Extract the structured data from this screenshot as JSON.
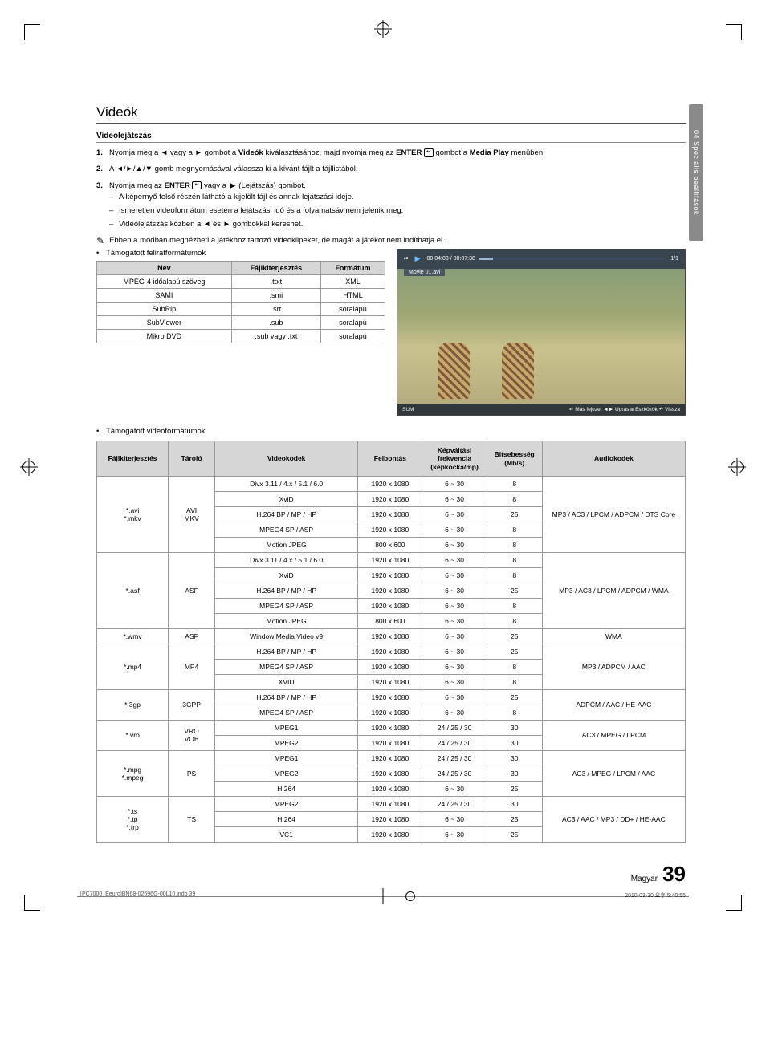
{
  "sideTab": {
    "text": "04  Speciális beállítások"
  },
  "heading": "Videók",
  "subheading": "Videolejátszás",
  "steps": [
    {
      "num": "1.",
      "html": "Nyomja meg a ◄ vagy a ► gombot a <b>Videók</b> kiválasztásához, majd nyomja meg az <b>ENTER</b> <span class='enter-badge'>↵</span> gombot a <b>Media Play</b> menüben."
    },
    {
      "num": "2.",
      "html": "A ◄/►/▲/▼ gomb megnyomásával válassza ki a kívánt fájlt a fájllistából."
    },
    {
      "num": "3.",
      "html": "Nyomja meg az <b>ENTER</b> <span class='enter-badge'>↵</span> vagy a <span class='glyph'>▶</span> (Lejátszás) gombot."
    }
  ],
  "dashes": [
    "A képernyő felső részén látható a kijelölt fájl és annak lejátszási ideje.",
    "Ismeretlen videoformátum esetén a lejátszási idő és a folyamatsáv nem jelenik meg.",
    "Videolejátszás közben a ◄ és ► gombokkal kereshet."
  ],
  "note": "Ebben a módban megnézheti a játékhoz tartozó videoklipeket, de magát a játékot nem indíthatja el.",
  "bullet1": "Támogatott feliratformátumok",
  "bullet2": "Támogatott videoformátumok",
  "subtitleTable": {
    "headers": [
      "Név",
      "Fájlkiterjesztés",
      "Formátum"
    ],
    "rows": [
      [
        "MPEG-4 időalapú szöveg",
        ".ttxt",
        "XML"
      ],
      [
        "SAMI",
        ".smi",
        "HTML"
      ],
      [
        "SubRip",
        ".srt",
        "soralapú"
      ],
      [
        "SubViewer",
        ".sub",
        "soralapú"
      ],
      [
        "Mikro DVD",
        ".sub vagy .txt",
        "soralapú"
      ]
    ]
  },
  "preview": {
    "time": "00:04:03 / 00:07:38",
    "page": "1/1",
    "file": "Movie 01.avi",
    "sum": "SUM",
    "controls": "↵ Más fejezet  ◄► Ugrás  ⧈ Eszközök  ↶ Vissza"
  },
  "videoTable": {
    "headers": [
      "Fájlkiterjesztés",
      "Tároló",
      "Videokodek",
      "Felbontás",
      "Képváltási frekvencia (képkocka/mp)",
      "Bitsebesség (Mb/s)",
      "Audiokodek"
    ],
    "colWidths": [
      "80",
      "52",
      "160",
      "72",
      "72",
      "62",
      "160"
    ],
    "groups": [
      {
        "ext": "*.avi\n*.mkv",
        "cont": "AVI\nMKV",
        "rows": [
          [
            "Divx 3.11 / 4.x / 5.1 / 6.0",
            "1920 x 1080",
            "6 ~ 30",
            "8"
          ],
          [
            "XviD",
            "1920 x 1080",
            "6 ~ 30",
            "8"
          ],
          [
            "H.264 BP / MP / HP",
            "1920 x 1080",
            "6 ~ 30",
            "25"
          ],
          [
            "MPEG4 SP / ASP",
            "1920 x 1080",
            "6 ~ 30",
            "8"
          ],
          [
            "Motion JPEG",
            "800 x 600",
            "6 ~ 30",
            "8"
          ]
        ],
        "audio": "MP3 / AC3 / LPCM / ADPCM / DTS Core"
      },
      {
        "ext": "*.asf",
        "cont": "ASF",
        "rows": [
          [
            "Divx 3.11 / 4.x / 5.1 / 6.0",
            "1920 x 1080",
            "6 ~ 30",
            "8"
          ],
          [
            "XviD",
            "1920 x 1080",
            "6 ~ 30",
            "8"
          ],
          [
            "H.264 BP / MP / HP",
            "1920 x 1080",
            "6 ~ 30",
            "25"
          ],
          [
            "MPEG4 SP / ASP",
            "1920 x 1080",
            "6 ~ 30",
            "8"
          ],
          [
            "Motion JPEG",
            "800 x 600",
            "6 ~ 30",
            "8"
          ]
        ],
        "audio": "MP3 / AC3 / LPCM / ADPCM / WMA"
      },
      {
        "ext": "*.wmv",
        "cont": "ASF",
        "rows": [
          [
            "Window Media Video v9",
            "1920 x 1080",
            "6 ~ 30",
            "25"
          ]
        ],
        "audio": "WMA"
      },
      {
        "ext": "*.mp4",
        "cont": "MP4",
        "rows": [
          [
            "H.264 BP / MP / HP",
            "1920 x 1080",
            "6 ~ 30",
            "25"
          ],
          [
            "MPEG4 SP / ASP",
            "1920 x 1080",
            "6 ~ 30",
            "8"
          ],
          [
            "XVID",
            "1920 x 1080",
            "6 ~ 30",
            "8"
          ]
        ],
        "audio": "MP3 / ADPCM / AAC"
      },
      {
        "ext": "*.3gp",
        "cont": "3GPP",
        "rows": [
          [
            "H.264 BP / MP / HP",
            "1920 x 1080",
            "6 ~ 30",
            "25"
          ],
          [
            "MPEG4 SP / ASP",
            "1920 x 1080",
            "6 ~ 30",
            "8"
          ]
        ],
        "audio": "ADPCM / AAC / HE-AAC"
      },
      {
        "ext": "*.vro",
        "cont": "VRO\nVOB",
        "rows": [
          [
            "MPEG1",
            "1920 x 1080",
            "24 / 25 / 30",
            "30"
          ],
          [
            "MPEG2",
            "1920 x 1080",
            "24 / 25 / 30",
            "30"
          ]
        ],
        "audio": "AC3 / MPEG / LPCM"
      },
      {
        "ext": "*.mpg\n*.mpeg",
        "cont": "PS",
        "rows": [
          [
            "MPEG1",
            "1920 x 1080",
            "24 / 25 / 30",
            "30"
          ],
          [
            "MPEG2",
            "1920 x 1080",
            "24 / 25 / 30",
            "30"
          ],
          [
            "H.264",
            "1920 x 1080",
            "6 ~ 30",
            "25"
          ]
        ],
        "audio": "AC3 / MPEG / LPCM / AAC"
      },
      {
        "ext": "*.ts\n*.tp\n*.trp",
        "cont": "TS",
        "rows": [
          [
            "MPEG2",
            "1920 x 1080",
            "24 / 25 / 30",
            "30"
          ],
          [
            "H.264",
            "1920 x 1080",
            "6 ~ 30",
            "25"
          ],
          [
            "VC1",
            "1920 x 1080",
            "6 ~ 30",
            "25"
          ]
        ],
        "audio": "AC3 / AAC / MP3 / DD+ / HE-AAC"
      }
    ]
  },
  "footer": {
    "lang": "Magyar",
    "page": "39"
  },
  "printline": {
    "left": "[PC7000_Eeuro]BN68-02696G-00L10.indb   39",
    "right": "2010-03-30   오후 5:40:55"
  },
  "colors": {
    "headerBg": "#d6d6d6",
    "border": "#9a9a9a",
    "sideTab": "#8a8a8a"
  }
}
